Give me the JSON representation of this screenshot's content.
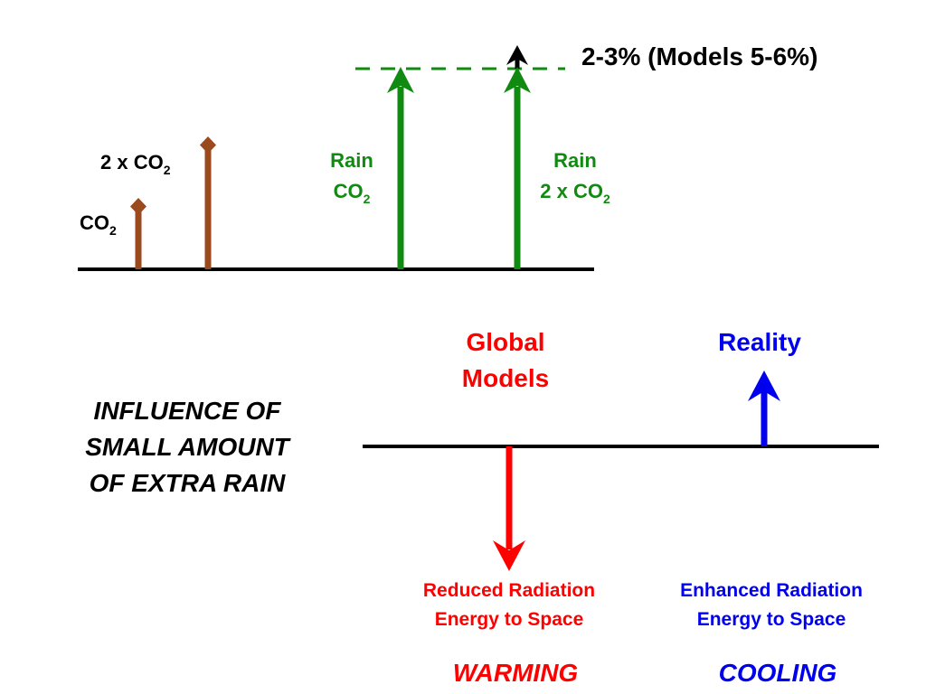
{
  "top_panel": {
    "co2_label": {
      "main": "CO",
      "sub": "2"
    },
    "double_co2_label": {
      "prefix": "2 x CO",
      "sub": "2"
    },
    "rain_co2_label": {
      "line1": "Rain",
      "line2_main": "CO",
      "line2_sub": "2"
    },
    "rain_double_co2_label": {
      "line1": "Rain",
      "line2_main": "2 x CO",
      "line2_sub": "2"
    },
    "increase_label": "2-3% (Models 5-6%)"
  },
  "left_title": {
    "line1": "INFLUENCE OF",
    "line2": "SMALL AMOUNT",
    "line3": "OF EXTRA RAIN"
  },
  "models": {
    "heading_line1": "Global",
    "heading_line2": "Models",
    "effect_line1": "Reduced Radiation",
    "effect_line2": "Energy to Space",
    "result": "WARMING"
  },
  "reality": {
    "heading": "Reality",
    "effect_line1": "Enhanced Radiation",
    "effect_line2": "Energy to Space",
    "result": "COOLING"
  },
  "colors": {
    "brown": "#9b4a1e",
    "green": "#118a11",
    "red": "#ff0000",
    "blue": "#0000ee",
    "black": "#000000"
  }
}
